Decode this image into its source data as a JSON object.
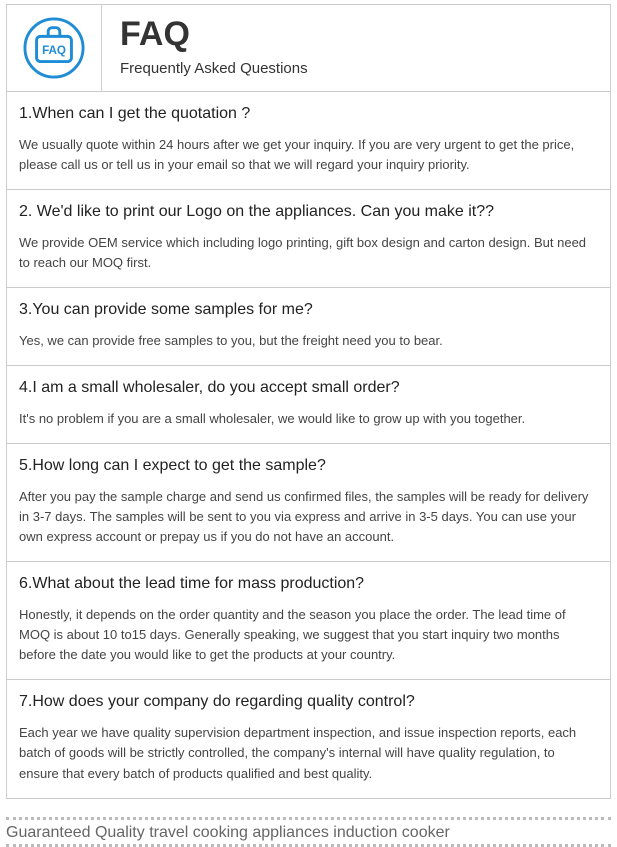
{
  "header": {
    "title": "FAQ",
    "subtitle": "Frequently Asked Questions",
    "icon_text": "FAQ",
    "icon_stroke": "#1f8cd6",
    "icon_fill": "#ffffff",
    "border_color": "#cccccc",
    "title_color": "#333333",
    "title_fontsize": 34,
    "subtitle_fontsize": 15
  },
  "faq": [
    {
      "q": "1.When can I get the quotation ?",
      "a": "We usually quote within 24 hours after we get your inquiry. If you are very urgent to get the price, please call us or tell us in your email so that we will regard your inquiry priority."
    },
    {
      "q": "2. We'd like to print our Logo on the appliances. Can you make it??",
      "a": "We provide OEM service which including logo printing, gift box design and carton design. But need to reach our MOQ first."
    },
    {
      "q": "3.You can provide some samples for me?",
      "a": "Yes, we can provide free samples to you, but the freight need you to bear."
    },
    {
      "q": "4.I am a small wholesaler, do you accept small order?",
      "a": "It's no problem if you are a small wholesaler, we would like to grow up with you together."
    },
    {
      "q": "5.How long can I expect to get the sample?",
      "a": "After you pay the sample charge and send us confirmed files, the samples will be ready for delivery in 3-7 days. The samples will be sent to you via express and arrive in 3-5 days. You can use your own express account or prepay us if you do not have an account."
    },
    {
      "q": "6.What about the lead time for mass production?",
      "a": "Honestly, it depends on the order quantity and the season you place the order. The lead time of MOQ is about 10 to15 days. Generally speaking, we suggest that you start inquiry two months before the date you would like to get the products at your country."
    },
    {
      "q": "7.How does your company do regarding quality control?",
      "a": "Each year we have quality supervision department inspection, and issue inspection reports, each batch of goods will be strictly controlled, the company's internal will have quality regulation, to ensure that every batch of products qualified and best quality."
    }
  ],
  "footer": {
    "text": "Guaranteed Quality travel cooking appliances induction cooker",
    "text_color": "#666666",
    "dot_color": "#bbbbbb",
    "fontsize": 16
  },
  "styles": {
    "q_fontsize": 16,
    "a_fontsize": 13,
    "a_color": "#444444",
    "q_color": "#222222",
    "background": "#ffffff"
  }
}
